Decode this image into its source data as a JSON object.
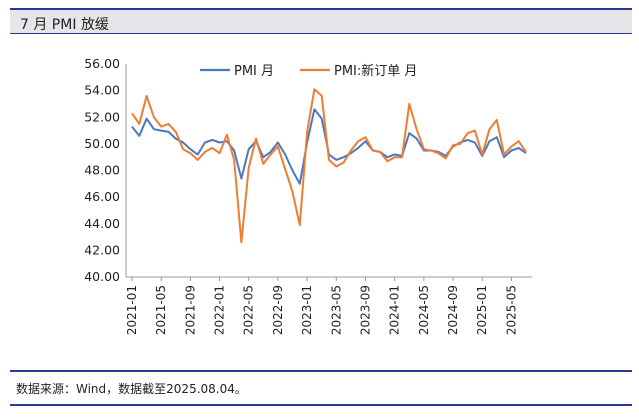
{
  "header": {
    "title": "7 月 PMI 放缓"
  },
  "footer": {
    "source": "数据来源：Wind，数据截至2025.08.04。"
  },
  "colors": {
    "accent": "#2b3a8a",
    "series_pmi": "#4a78c0",
    "series_new_orders": "#ed7d31"
  },
  "chart_data": {
    "type": "line",
    "ylim": [
      40,
      56
    ],
    "y_ticks": [
      "40.00",
      "42.00",
      "44.00",
      "46.00",
      "48.00",
      "50.00",
      "52.00",
      "54.00",
      "56.00"
    ],
    "x_tick_labels": [
      "2021-01",
      "2021-05",
      "2021-09",
      "2022-01",
      "2022-05",
      "2022-09",
      "2023-01",
      "2023-05",
      "2023-09",
      "2024-01",
      "2024-05",
      "2024-09",
      "2025-01",
      "2025-05"
    ],
    "x": [
      "2021-01",
      "2021-02",
      "2021-03",
      "2021-04",
      "2021-05",
      "2021-06",
      "2021-07",
      "2021-08",
      "2021-09",
      "2021-10",
      "2021-11",
      "2021-12",
      "2022-01",
      "2022-02",
      "2022-03",
      "2022-04",
      "2022-05",
      "2022-06",
      "2022-07",
      "2022-08",
      "2022-09",
      "2022-10",
      "2022-11",
      "2022-12",
      "2023-01",
      "2023-02",
      "2023-03",
      "2023-04",
      "2023-05",
      "2023-06",
      "2023-07",
      "2023-08",
      "2023-09",
      "2023-10",
      "2023-11",
      "2023-12",
      "2024-01",
      "2024-02",
      "2024-03",
      "2024-04",
      "2024-05",
      "2024-06",
      "2024-07",
      "2024-08",
      "2024-09",
      "2024-10",
      "2024-11",
      "2024-12",
      "2025-01",
      "2025-02",
      "2025-03",
      "2025-04",
      "2025-05",
      "2025-06",
      "2025-07"
    ],
    "legend_position": "top-center",
    "series": [
      {
        "name": "PMI 月",
        "color": "#4a78c0",
        "values": [
          51.3,
          50.6,
          51.9,
          51.1,
          51.0,
          50.9,
          50.4,
          50.1,
          49.6,
          49.2,
          50.1,
          50.3,
          50.1,
          50.2,
          49.5,
          47.4,
          49.6,
          50.2,
          49.0,
          49.4,
          50.1,
          49.2,
          48.0,
          47.0,
          50.1,
          52.6,
          51.9,
          49.2,
          48.8,
          49.0,
          49.3,
          49.7,
          50.2,
          49.5,
          49.4,
          49.0,
          49.2,
          49.1,
          50.8,
          50.4,
          49.5,
          49.5,
          49.4,
          49.1,
          49.8,
          50.1,
          50.3,
          50.1,
          49.1,
          50.2,
          50.5,
          49.0,
          49.5,
          49.7,
          49.3
        ]
      },
      {
        "name": "PMI:新订单 月",
        "color": "#ed7d31",
        "values": [
          52.3,
          51.5,
          53.6,
          52.0,
          51.3,
          51.5,
          50.9,
          49.6,
          49.3,
          48.8,
          49.4,
          49.7,
          49.3,
          50.7,
          48.8,
          42.6,
          48.2,
          50.4,
          48.5,
          49.2,
          49.8,
          48.1,
          46.4,
          43.9,
          50.9,
          54.1,
          53.6,
          48.8,
          48.3,
          48.6,
          49.5,
          50.2,
          50.5,
          49.5,
          49.4,
          48.7,
          49.0,
          49.0,
          53.0,
          51.1,
          49.6,
          49.5,
          49.3,
          48.9,
          49.9,
          50.0,
          50.8,
          51.0,
          49.2,
          51.1,
          51.8,
          49.2,
          49.8,
          50.2,
          49.4
        ]
      }
    ]
  }
}
